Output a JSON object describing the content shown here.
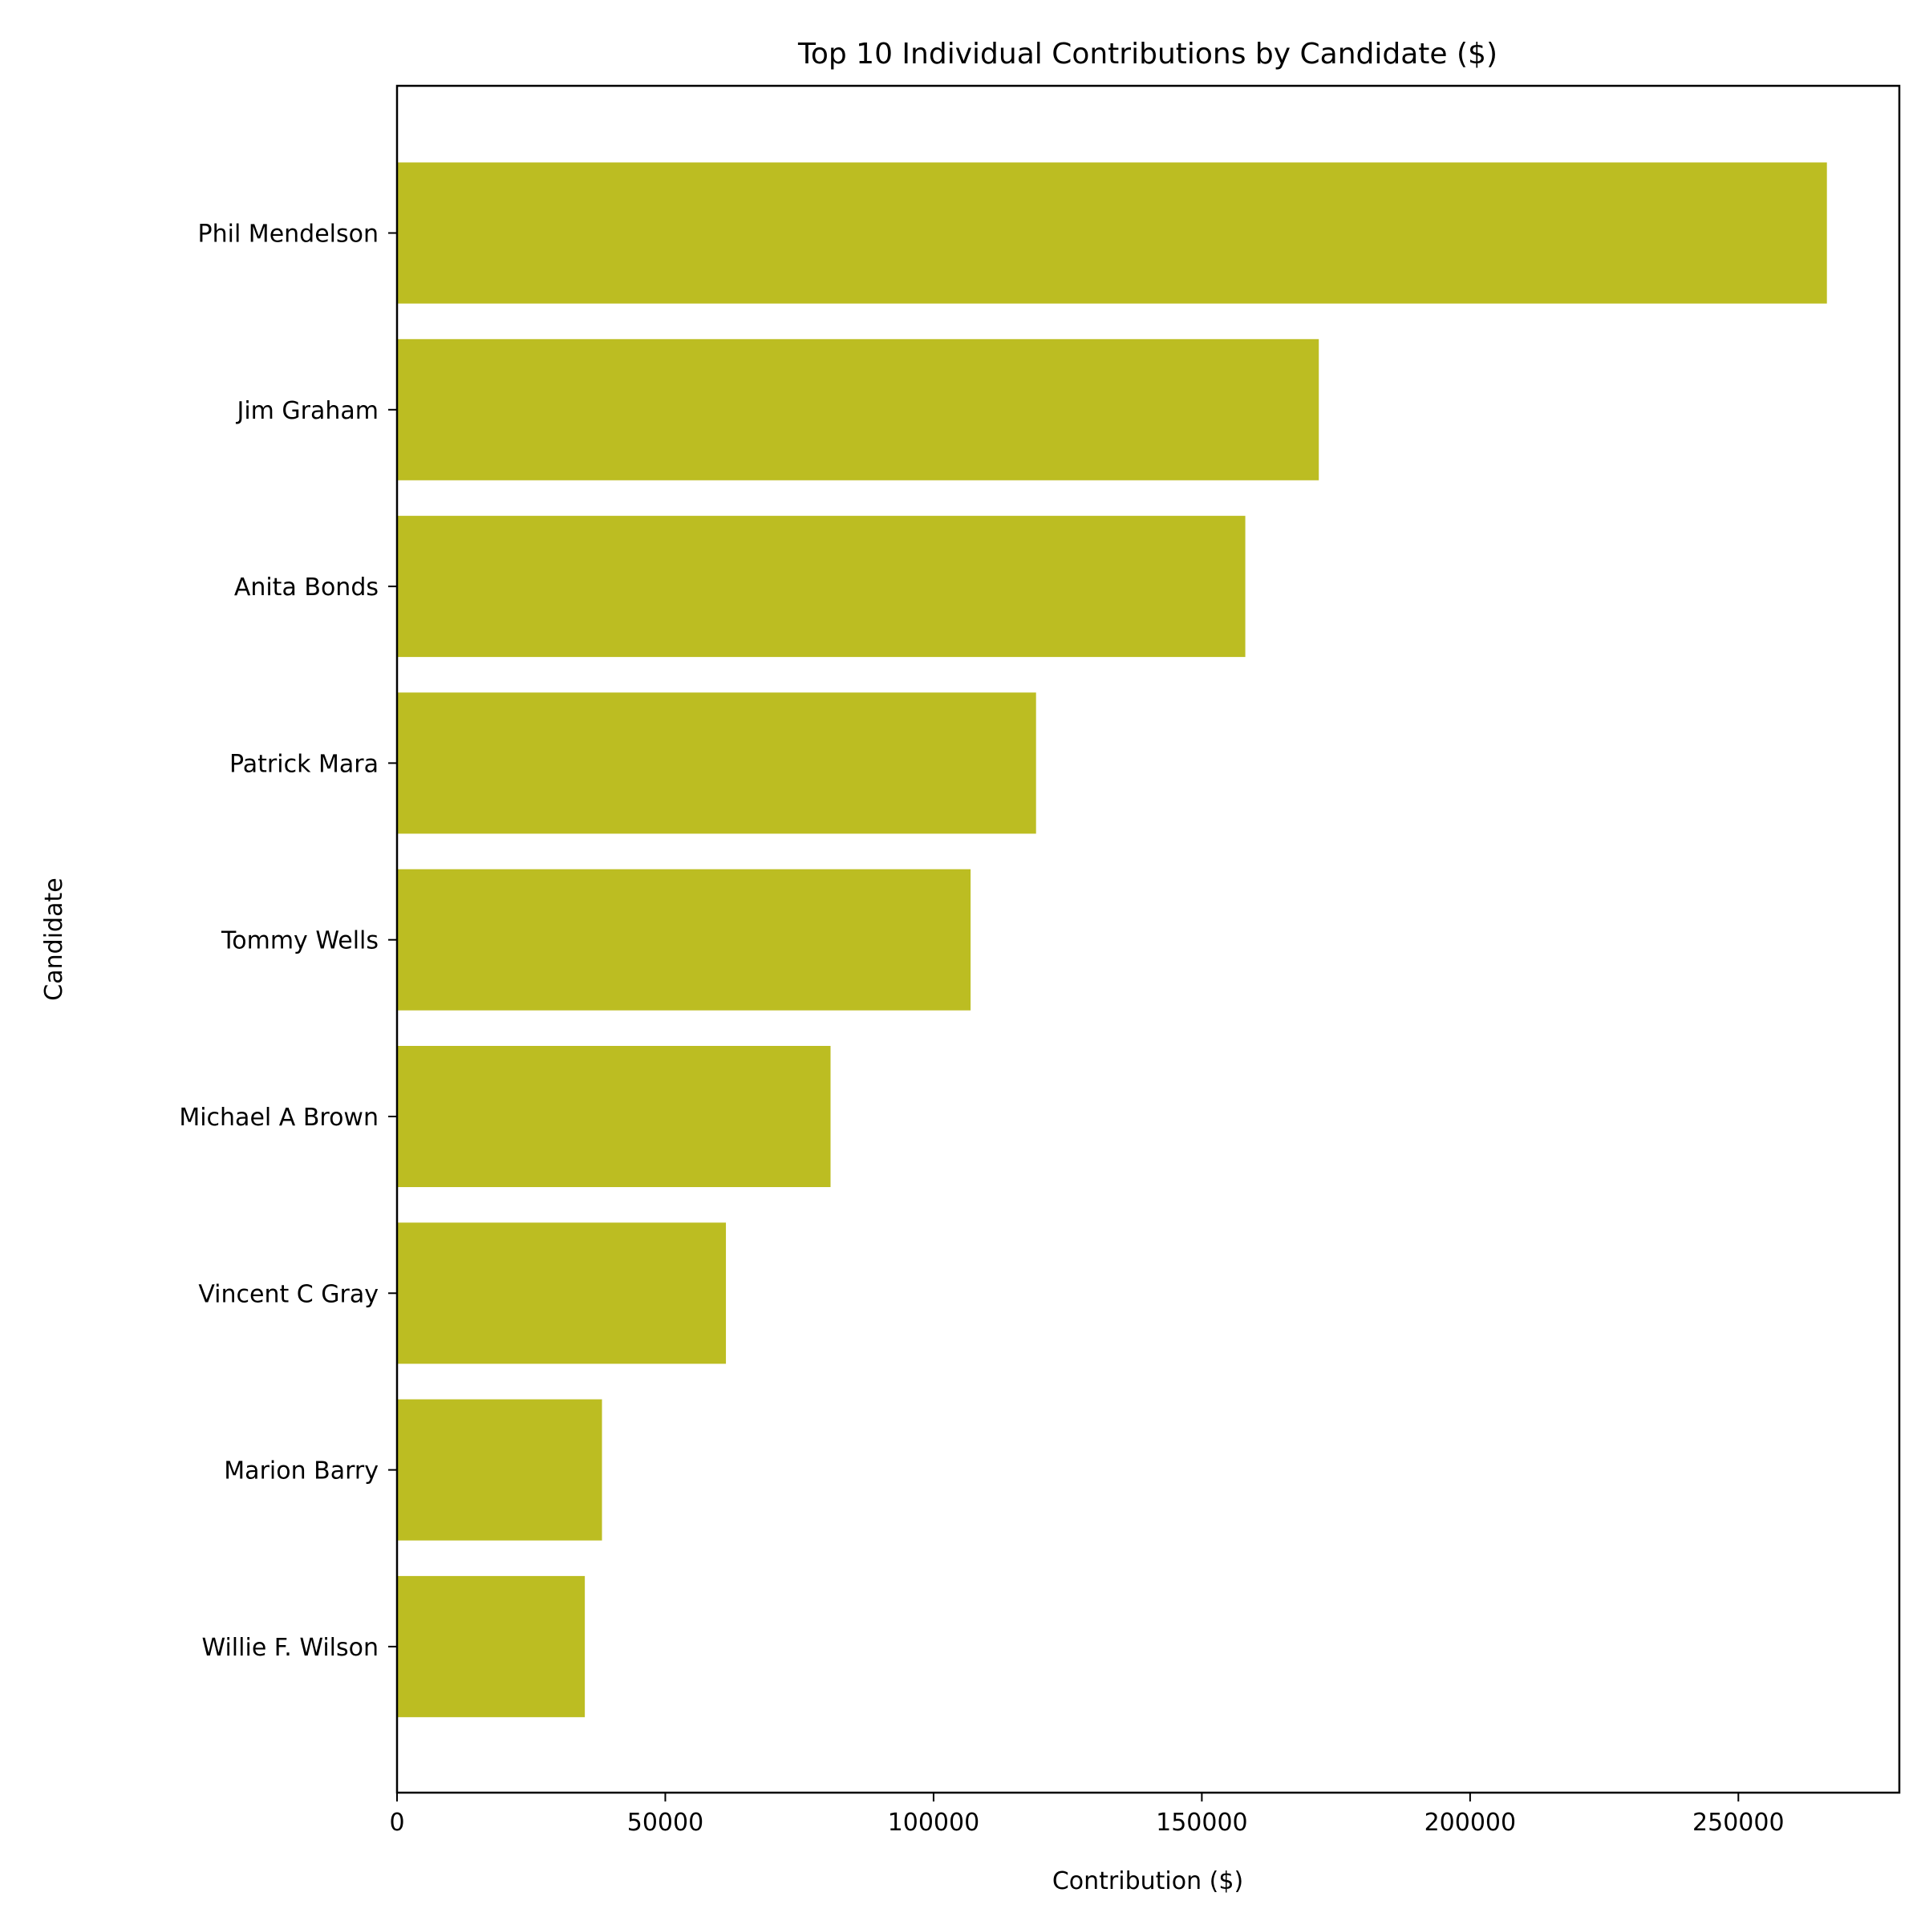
{
  "chart_data": {
    "type": "bar",
    "orientation": "horizontal",
    "title": "Top 10 Individual Contributions by Candidate ($)",
    "xlabel": "Contribution ($)",
    "ylabel": "Candidate",
    "categories": [
      "Phil Mendelson",
      "Jim Graham",
      "Anita Bonds",
      "Patrick Mara",
      "Tommy Wells",
      "Michael A Brown",
      "Vincent C Gray",
      "Marion Barry",
      "Willie F. Wilson"
    ],
    "values": [
      266500,
      171800,
      158100,
      119100,
      106900,
      80800,
      61300,
      38200,
      35000
    ],
    "xlim": [
      0,
      280000
    ],
    "xticks": [
      0,
      50000,
      100000,
      150000,
      200000,
      250000
    ],
    "xtick_labels": [
      "0",
      "50000",
      "100000",
      "150000",
      "200000",
      "250000"
    ],
    "bar_color": "#bcbd22",
    "grid": false,
    "legend": "none"
  }
}
